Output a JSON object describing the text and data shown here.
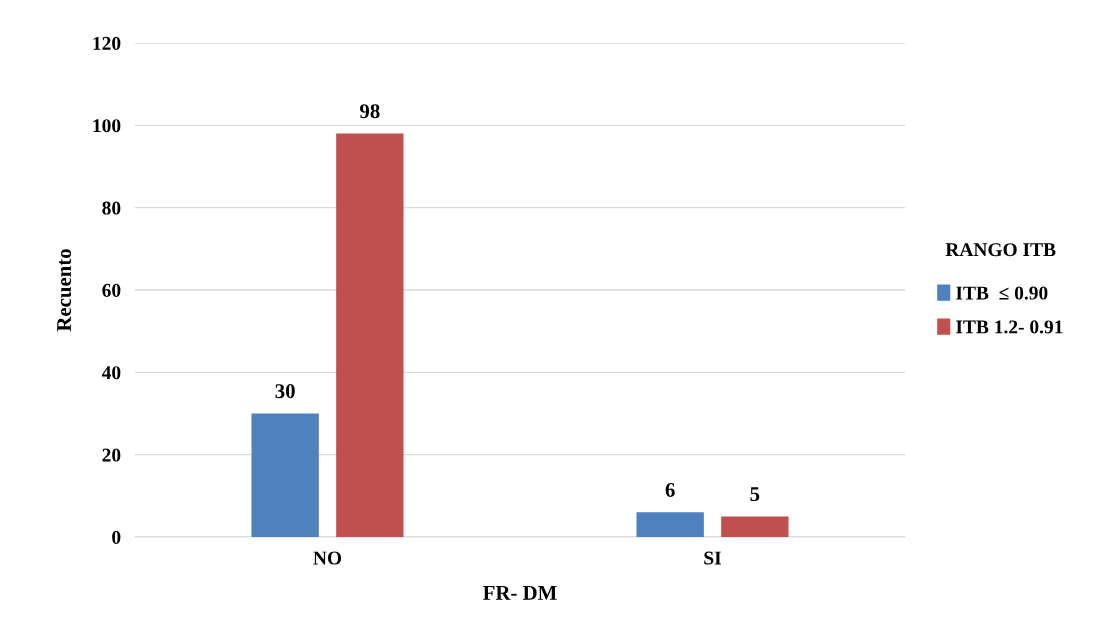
{
  "chart_data": {
    "type": "bar",
    "xlabel": "FR- DM",
    "ylabel": "Recuento",
    "legend_title": "RANGO ITB",
    "categories": [
      "NO",
      "SI"
    ],
    "series": [
      {
        "name": "ITB  ≤ 0.90",
        "color": "#4f81bd",
        "values": [
          30,
          6
        ]
      },
      {
        "name": "ITB 1.2- 0.91",
        "color": "#c0504d",
        "values": [
          98,
          5
        ]
      }
    ],
    "ylim": [
      0,
      120
    ],
    "yticks": [
      0,
      20,
      40,
      60,
      80,
      100,
      120
    ],
    "grid": "y",
    "legend": "right",
    "data_labels": true
  }
}
